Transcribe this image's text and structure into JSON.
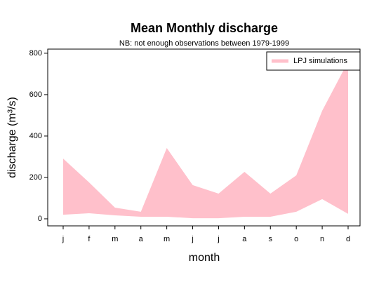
{
  "chart_data": {
    "type": "band",
    "title": "Mean Monthly discharge",
    "subtitle": "NB: not enough observations between 1979-1999",
    "xlabel": "month",
    "ylabel": "discharge (m³/s)",
    "categories": [
      "j",
      "f",
      "m",
      "a",
      "m",
      "j",
      "j",
      "a",
      "s",
      "o",
      "n",
      "d"
    ],
    "series": [
      {
        "name": "LPJ simulations",
        "color": "#ffc0cb",
        "lower": [
          20,
          27,
          17,
          10,
          10,
          3,
          3,
          10,
          10,
          34,
          95,
          24
        ],
        "upper": [
          291,
          176,
          54,
          34,
          342,
          163,
          122,
          227,
          122,
          210,
          522,
          760
        ]
      }
    ],
    "ylim": [
      -34,
      820
    ],
    "yticks": [
      0,
      200,
      400,
      600,
      800
    ],
    "legend": "top-right"
  }
}
